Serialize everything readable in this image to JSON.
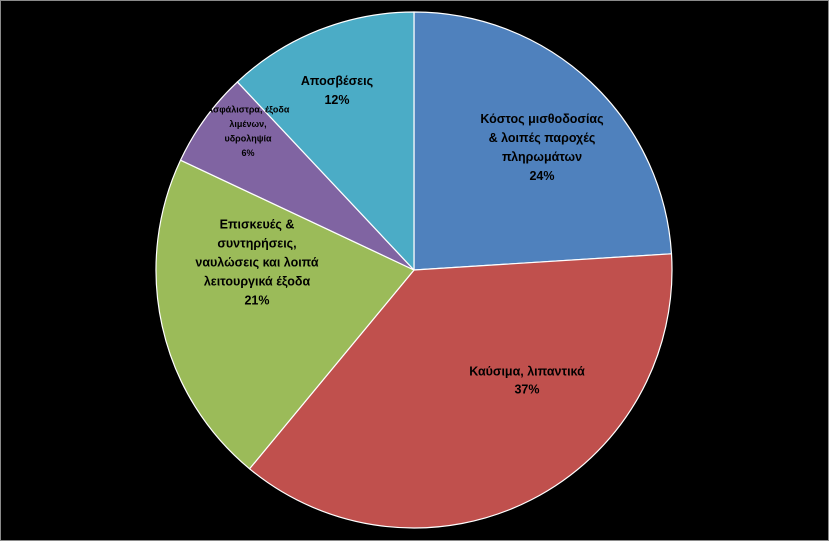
{
  "chart_data": {
    "type": "pie",
    "title": "",
    "slices": [
      {
        "label_lines": [
          "Κόστος μισθοδοσίας",
          "& λοιπές παροχές",
          "πληρωμάτων"
        ],
        "percent_label": "24%",
        "value": 24,
        "color": "#4f81bd"
      },
      {
        "label_lines": [
          "Καύσιμα, λιπαντικά"
        ],
        "percent_label": "37%",
        "value": 37,
        "color": "#c0504d"
      },
      {
        "label_lines": [
          "Επισκευές &",
          "συντηρήσεις,",
          "ναυλώσεις και λοιπά",
          "λειτουργικά έξοδα"
        ],
        "percent_label": "21%",
        "value": 21,
        "color": "#9bbb59"
      },
      {
        "label_lines": [
          "Ασφάλιστρα, έξοδα",
          "λιμένων,",
          "υδροληψία"
        ],
        "percent_label": "6%",
        "value": 6,
        "color": "#8064a2"
      },
      {
        "label_lines": [
          "Αποσβέσεις"
        ],
        "percent_label": "12%",
        "value": 12,
        "color": "#4bacc6"
      }
    ],
    "start_angle_deg": 0,
    "direction": "clockwise",
    "legend": "none",
    "background": "#000000"
  }
}
